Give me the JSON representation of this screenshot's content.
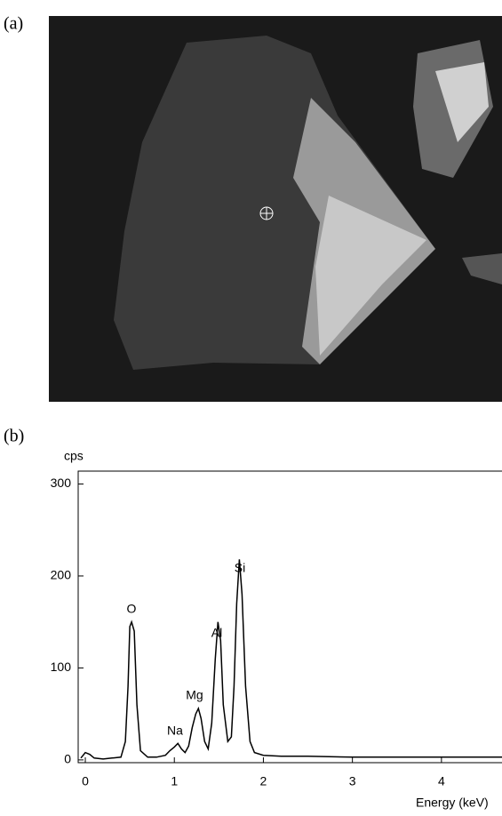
{
  "panel_labels": [
    "(a)",
    "(b)"
  ],
  "chart_data": {
    "type": "line",
    "xlabel": "Energy (keV)",
    "ylabel": "cps",
    "x": [
      -0.05,
      0.0,
      0.05,
      0.1,
      0.2,
      0.3,
      0.4,
      0.45,
      0.48,
      0.5,
      0.52,
      0.55,
      0.58,
      0.62,
      0.7,
      0.8,
      0.9,
      0.95,
      1.0,
      1.04,
      1.08,
      1.12,
      1.16,
      1.2,
      1.24,
      1.27,
      1.3,
      1.34,
      1.38,
      1.42,
      1.46,
      1.49,
      1.52,
      1.55,
      1.6,
      1.64,
      1.67,
      1.7,
      1.73,
      1.76,
      1.8,
      1.85,
      1.9,
      2.0,
      2.2,
      2.5,
      3.0,
      3.5,
      4.0,
      4.5,
      4.68
    ],
    "values": [
      2,
      8,
      6,
      2,
      1,
      2,
      3,
      20,
      80,
      145,
      150,
      140,
      60,
      10,
      3,
      3,
      5,
      10,
      14,
      18,
      12,
      8,
      15,
      35,
      50,
      56,
      45,
      20,
      12,
      40,
      110,
      150,
      130,
      60,
      20,
      25,
      80,
      170,
      218,
      180,
      80,
      20,
      8,
      5,
      4,
      4,
      3,
      3,
      3,
      3,
      3
    ],
    "color": "#000000",
    "xlim": [
      -0.08,
      4.68
    ],
    "ylim": [
      -3,
      314
    ],
    "xticks": [
      0,
      1,
      2,
      3,
      4
    ],
    "yticks": [
      0,
      100,
      200,
      300
    ],
    "annotations": [
      "O",
      "Na",
      "Mg",
      "Al",
      "Si"
    ]
  }
}
